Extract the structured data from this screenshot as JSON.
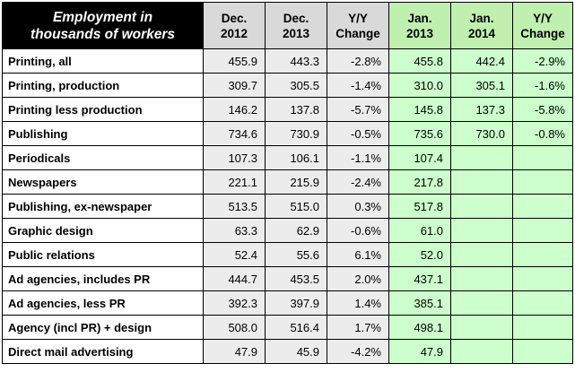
{
  "chart_data": {
    "type": "table",
    "title": "Employment in thousands of workers",
    "header": {
      "title_line1": "Employment in",
      "title_line2": "thousands of workers",
      "columns": [
        {
          "line1": "Dec.",
          "line2": "2012"
        },
        {
          "line1": "Dec.",
          "line2": "2013"
        },
        {
          "line1": "Y/Y",
          "line2": "Change"
        },
        {
          "line1": "Jan.",
          "line2": "2013"
        },
        {
          "line1": "Jan.",
          "line2": "2014"
        },
        {
          "line1": "Y/Y",
          "line2": "Change"
        }
      ]
    },
    "rows": [
      {
        "label": "Printing, all",
        "values": [
          "455.9",
          "443.3",
          "-2.8%",
          "455.8",
          "442.4",
          "-2.9%"
        ]
      },
      {
        "label": "Printing, production",
        "values": [
          "309.7",
          "305.5",
          "-1.4%",
          "310.0",
          "305.1",
          "-1.6%"
        ]
      },
      {
        "label": "Printing less production",
        "values": [
          "146.2",
          "137.8",
          "-5.7%",
          "145.8",
          "137.3",
          "-5.8%"
        ]
      },
      {
        "label": "Publishing",
        "values": [
          "734.6",
          "730.9",
          "-0.5%",
          "735.6",
          "730.0",
          "-0.8%"
        ]
      },
      {
        "label": "Periodicals",
        "values": [
          "107.3",
          "106.1",
          "-1.1%",
          "107.4",
          "",
          ""
        ]
      },
      {
        "label": "Newspapers",
        "values": [
          "221.1",
          "215.9",
          "-2.4%",
          "217.8",
          "",
          ""
        ]
      },
      {
        "label": "Publishing, ex-newspaper",
        "values": [
          "513.5",
          "515.0",
          "0.3%",
          "517.8",
          "",
          ""
        ]
      },
      {
        "label": "Graphic design",
        "values": [
          "63.3",
          "62.9",
          "-0.6%",
          "61.0",
          "",
          ""
        ]
      },
      {
        "label": "Public relations",
        "values": [
          "52.4",
          "55.6",
          "6.1%",
          "52.0",
          "",
          ""
        ]
      },
      {
        "label": "Ad agencies, includes PR",
        "values": [
          "444.7",
          "453.5",
          "2.0%",
          "437.1",
          "",
          ""
        ]
      },
      {
        "label": "Ad agencies, less PR",
        "values": [
          "392.3",
          "397.9",
          "1.4%",
          "385.1",
          "",
          ""
        ]
      },
      {
        "label": "Agency (incl PR) + design",
        "values": [
          "508.0",
          "516.4",
          "1.7%",
          "498.1",
          "",
          ""
        ]
      },
      {
        "label": "Direct mail advertising",
        "values": [
          "47.9",
          "45.9",
          "-4.2%",
          "47.9",
          "",
          ""
        ]
      }
    ],
    "colors": {
      "header_corner": "#000000",
      "header_grey": "#d9d9d9",
      "header_green": "#c0f0b0",
      "cell_grey": "#ececec",
      "cell_green": "#ccffcc"
    }
  }
}
